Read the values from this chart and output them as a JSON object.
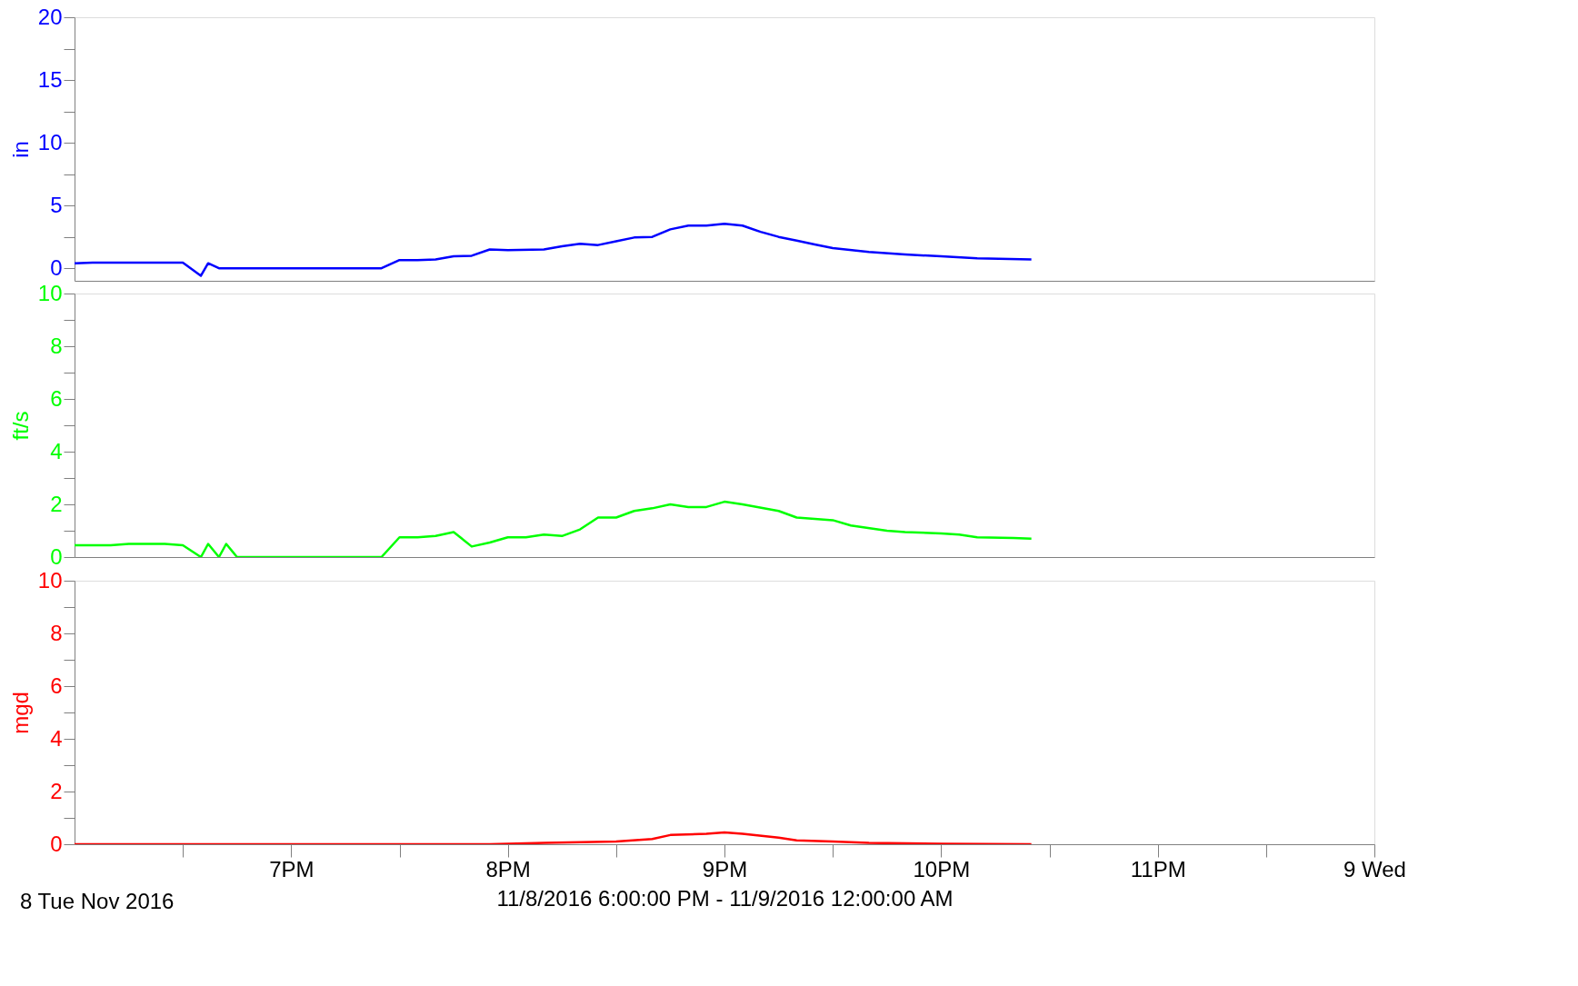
{
  "chart_data": [
    {
      "type": "line",
      "ylabel": "in",
      "xlim": [
        "2016-11-08T18:00",
        "2016-11-09T00:00"
      ],
      "ylim": [
        -1,
        20
      ],
      "tick_labels": "y",
      "grid": false,
      "marker": "none",
      "line_style": "solid",
      "yticks": [
        0,
        {
          "value": 2.5,
          "label": null
        },
        5,
        {
          "value": 7.5,
          "label": null
        },
        10,
        {
          "value": 12.5,
          "label": null
        },
        15,
        {
          "value": 17.5,
          "label": null
        },
        20
      ],
      "series": [
        {
          "color": "#0000ff",
          "x": [
            "2016-11-08T18:00",
            "2016-11-08T18:05",
            "2016-11-08T18:30",
            "2016-11-08T18:35",
            "2016-11-08T18:37",
            "2016-11-08T18:40",
            "2016-11-08T19:25",
            "2016-11-08T19:30",
            "2016-11-08T19:35",
            "2016-11-08T19:40",
            "2016-11-08T19:45",
            "2016-11-08T19:50",
            "2016-11-08T19:55",
            "2016-11-08T20:00",
            "2016-11-08T20:10",
            "2016-11-08T20:15",
            "2016-11-08T20:20",
            "2016-11-08T20:25",
            "2016-11-08T20:30",
            "2016-11-08T20:35",
            "2016-11-08T20:40",
            "2016-11-08T20:45",
            "2016-11-08T20:50",
            "2016-11-08T20:55",
            "2016-11-08T21:00",
            "2016-11-08T21:05",
            "2016-11-08T21:10",
            "2016-11-08T21:15",
            "2016-11-08T21:20",
            "2016-11-08T21:25",
            "2016-11-08T21:30",
            "2016-11-08T21:40",
            "2016-11-08T21:50",
            "2016-11-08T22:00",
            "2016-11-08T22:10",
            "2016-11-08T22:25"
          ],
          "values": [
            0.4,
            0.45,
            0.45,
            -0.6,
            0.4,
            0,
            0,
            0.65,
            0.65,
            0.7,
            0.95,
            1.0,
            1.5,
            1.45,
            1.5,
            1.75,
            1.95,
            1.85,
            2.15,
            2.45,
            2.5,
            3.1,
            3.4,
            3.4,
            3.55,
            3.4,
            2.9,
            2.5,
            2.2,
            1.9,
            1.6,
            1.3,
            1.1,
            0.95,
            0.8,
            0.7
          ]
        }
      ]
    },
    {
      "type": "line",
      "ylabel": "ft/s",
      "xlim": [
        "2016-11-08T18:00",
        "2016-11-09T00:00"
      ],
      "ylim": [
        0,
        10
      ],
      "tick_labels": "y",
      "grid": false,
      "marker": "none",
      "line_style": "solid",
      "yticks": [
        0,
        {
          "value": 1,
          "label": null
        },
        2,
        {
          "value": 3,
          "label": null
        },
        4,
        {
          "value": 5,
          "label": null
        },
        6,
        {
          "value": 7,
          "label": null
        },
        8,
        {
          "value": 9,
          "label": null
        },
        10
      ],
      "series": [
        {
          "color": "#00ff00",
          "x": [
            "2016-11-08T18:00",
            "2016-11-08T18:10",
            "2016-11-08T18:15",
            "2016-11-08T18:25",
            "2016-11-08T18:30",
            "2016-11-08T18:35",
            "2016-11-08T18:37",
            "2016-11-08T18:40",
            "2016-11-08T18:42",
            "2016-11-08T18:45",
            "2016-11-08T19:25",
            "2016-11-08T19:30",
            "2016-11-08T19:35",
            "2016-11-08T19:40",
            "2016-11-08T19:45",
            "2016-11-08T19:50",
            "2016-11-08T19:55",
            "2016-11-08T20:00",
            "2016-11-08T20:05",
            "2016-11-08T20:10",
            "2016-11-08T20:15",
            "2016-11-08T20:20",
            "2016-11-08T20:25",
            "2016-11-08T20:30",
            "2016-11-08T20:35",
            "2016-11-08T20:40",
            "2016-11-08T20:45",
            "2016-11-08T20:50",
            "2016-11-08T20:55",
            "2016-11-08T21:00",
            "2016-11-08T21:05",
            "2016-11-08T21:15",
            "2016-11-08T21:20",
            "2016-11-08T21:25",
            "2016-11-08T21:30",
            "2016-11-08T21:35",
            "2016-11-08T21:45",
            "2016-11-08T21:50",
            "2016-11-08T22:00",
            "2016-11-08T22:05",
            "2016-11-08T22:10",
            "2016-11-08T22:20",
            "2016-11-08T22:25"
          ],
          "values": [
            0.45,
            0.45,
            0.5,
            0.5,
            0.45,
            0,
            0.5,
            0,
            0.5,
            0,
            0,
            0.75,
            0.75,
            0.8,
            0.95,
            0.4,
            0.55,
            0.75,
            0.75,
            0.85,
            0.8,
            1.05,
            1.5,
            1.5,
            1.75,
            1.85,
            2.0,
            1.9,
            1.9,
            2.1,
            2.0,
            1.75,
            1.5,
            1.45,
            1.4,
            1.2,
            1.0,
            0.95,
            0.9,
            0.85,
            0.75,
            0.72,
            0.7
          ]
        }
      ]
    },
    {
      "type": "line",
      "ylabel": "mgd",
      "xlabel": "11/8/2016 6:00:00 PM - 11/9/2016 12:00:00 AM",
      "xlim": [
        "2016-11-08T18:00",
        "2016-11-09T00:00"
      ],
      "ylim": [
        0,
        10
      ],
      "grid": false,
      "marker": "none",
      "line_style": "solid",
      "xticks": [
        {
          "value": "2016-11-08T18:30",
          "label": null
        },
        {
          "value": "2016-11-08T19:00",
          "label": "7PM"
        },
        {
          "value": "2016-11-08T19:30",
          "label": null
        },
        {
          "value": "2016-11-08T20:00",
          "label": "8PM"
        },
        {
          "value": "2016-11-08T20:30",
          "label": null
        },
        {
          "value": "2016-11-08T21:00",
          "label": "9PM"
        },
        {
          "value": "2016-11-08T21:30",
          "label": null
        },
        {
          "value": "2016-11-08T22:00",
          "label": "10PM"
        },
        {
          "value": "2016-11-08T22:30",
          "label": null
        },
        {
          "value": "2016-11-08T23:00",
          "label": "11PM"
        },
        {
          "value": "2016-11-08T23:30",
          "label": null
        },
        {
          "value": "2016-11-09T00:00",
          "label": "9 Wed"
        }
      ],
      "yticks": [
        0,
        {
          "value": 1,
          "label": null
        },
        2,
        {
          "value": 3,
          "label": null
        },
        4,
        {
          "value": 5,
          "label": null
        },
        6,
        {
          "value": 7,
          "label": null
        },
        8,
        {
          "value": 9,
          "label": null
        },
        10
      ],
      "annotations": [
        "8 Tue Nov 2016"
      ],
      "series": [
        {
          "color": "#ff0000",
          "x": [
            "2016-11-08T18:00",
            "2016-11-08T19:55",
            "2016-11-08T20:10",
            "2016-11-08T20:30",
            "2016-11-08T20:40",
            "2016-11-08T20:45",
            "2016-11-08T20:55",
            "2016-11-08T21:00",
            "2016-11-08T21:05",
            "2016-11-08T21:15",
            "2016-11-08T21:20",
            "2016-11-08T21:30",
            "2016-11-08T21:40",
            "2016-11-08T22:00",
            "2016-11-08T22:25"
          ],
          "values": [
            0,
            0,
            0.05,
            0.1,
            0.2,
            0.35,
            0.4,
            0.45,
            0.4,
            0.25,
            0.15,
            0.1,
            0.05,
            0.02,
            0
          ]
        }
      ]
    }
  ]
}
